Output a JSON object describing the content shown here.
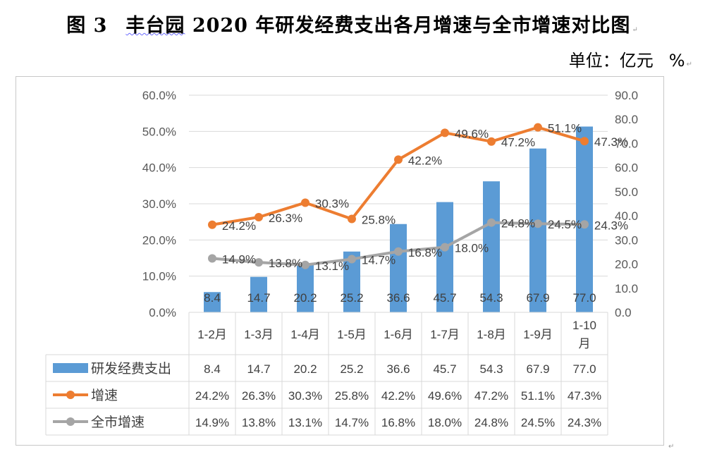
{
  "title": {
    "figure_no": "图 3",
    "text_underlined": "丰台园",
    "text_rest": " 2020 年研发经费支出各月增速与全市增速对比图"
  },
  "unit": {
    "label": "单位：亿元",
    "percent": "%"
  },
  "chart_data": {
    "type": "bar",
    "categories": [
      "1-2月",
      "1-3月",
      "1-4月",
      "1-5月",
      "1-6月",
      "1-7月",
      "1-8月",
      "1-9月",
      "1-10月"
    ],
    "category_display": [
      [
        "1-2月"
      ],
      [
        "1-3月"
      ],
      [
        "1-4月"
      ],
      [
        "1-5月"
      ],
      [
        "1-6月"
      ],
      [
        "1-7月"
      ],
      [
        "1-8月"
      ],
      [
        "1-9月"
      ],
      [
        "1-10",
        "月"
      ]
    ],
    "series": [
      {
        "name": "研发经费支出",
        "type": "bar",
        "axis": "right",
        "color": "#5b9bd5",
        "values": [
          8.4,
          14.7,
          20.2,
          25.2,
          36.6,
          45.7,
          54.3,
          67.9,
          77.0
        ],
        "labels": [
          "8.4",
          "14.7",
          "20.2",
          "25.2",
          "36.6",
          "45.7",
          "54.3",
          "67.9",
          "77.0"
        ]
      },
      {
        "name": "增速",
        "type": "line",
        "axis": "left",
        "color": "#ed7d31",
        "values": [
          24.2,
          26.3,
          30.3,
          25.8,
          42.2,
          49.6,
          47.2,
          51.1,
          47.3
        ],
        "labels": [
          "24.2%",
          "26.3%",
          "30.3%",
          "25.8%",
          "42.2%",
          "49.6%",
          "47.2%",
          "51.1%",
          "47.3%"
        ]
      },
      {
        "name": "全市增速",
        "type": "line",
        "axis": "left",
        "color": "#a5a5a5",
        "values": [
          14.9,
          13.8,
          13.1,
          14.7,
          16.8,
          18.0,
          24.8,
          24.5,
          24.3
        ],
        "labels": [
          "14.9%",
          "13.8%",
          "13.1%",
          "14.7%",
          "16.8%",
          "18.0%",
          "24.8%",
          "24.5%",
          "24.3%"
        ]
      }
    ],
    "left_axis": {
      "ylim": [
        0,
        60
      ],
      "ticks": [
        "0.0%",
        "10.0%",
        "20.0%",
        "30.0%",
        "40.0%",
        "50.0%",
        "60.0%"
      ]
    },
    "right_axis": {
      "ylim": [
        0,
        90
      ],
      "ticks": [
        "0.0",
        "10.0",
        "20.0",
        "30.0",
        "40.0",
        "50.0",
        "60.0",
        "70.0",
        "80.0",
        "90.0"
      ]
    },
    "grid": true,
    "legend": "data-table"
  }
}
